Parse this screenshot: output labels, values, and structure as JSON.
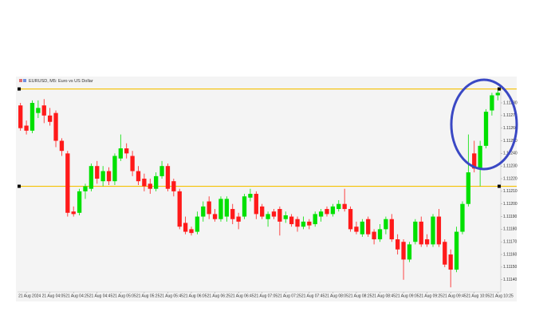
{
  "chart_data": {
    "type": "candlestick",
    "title": "EURUSD, M5:  Euro vs US Dollar",
    "categories": [
      null,
      "21 Aug 2024",
      null,
      null,
      null,
      "21 Aug 04:05",
      null,
      null,
      null,
      "21 Aug 04:25",
      null,
      null,
      null,
      "21 Aug 04:45",
      null,
      null,
      null,
      "21 Aug 05:05",
      null,
      null,
      null,
      "21 Aug 05:25",
      null,
      null,
      null,
      "21 Aug 05:45",
      null,
      null,
      null,
      "21 Aug 06:05",
      null,
      null,
      null,
      "21 Aug 06:25",
      null,
      null,
      null,
      "21 Aug 06:45",
      null,
      null,
      null,
      "21 Aug 07:05",
      null,
      null,
      null,
      "21 Aug 07:25",
      null,
      null,
      null,
      "21 Aug 07:45",
      null,
      null,
      null,
      "21 Aug 08:05",
      null,
      null,
      null,
      "21 Aug 08:25",
      null,
      null,
      null,
      "21 Aug 08:45",
      null,
      null,
      null,
      "21 Aug 09:05",
      null,
      null,
      null,
      "21 Aug 09:25",
      null,
      null,
      null,
      "21 Aug 09:45",
      null,
      null,
      null,
      "21 Aug 10:05",
      null,
      null,
      null,
      "21 Aug 10:25"
    ],
    "open": [
      1.11278,
      1.11262,
      1.11258,
      1.11272,
      1.11278,
      1.1127,
      1.11272,
      1.1125,
      1.1124,
      1.11194,
      1.11193,
      1.1121,
      1.11212,
      1.1123,
      1.11218,
      1.11226,
      1.11218,
      1.11236,
      1.11244,
      1.11238,
      1.11226,
      1.1122,
      1.11216,
      1.11212,
      1.11222,
      1.1123,
      1.11218,
      1.1121,
      1.11185,
      1.1118,
      1.11178,
      1.1119,
      1.11202,
      1.11192,
      1.11188,
      1.1119,
      1.11196,
      1.1119,
      1.1119,
      1.11205,
      1.11208,
      1.11198,
      1.11188,
      1.11194,
      1.11196,
      1.11188,
      1.1119,
      1.11188,
      1.11182,
      1.11186,
      1.11184,
      1.1119,
      1.11196,
      1.11192,
      1.11196,
      1.112,
      1.11196,
      1.11182,
      1.11176,
      1.11188,
      1.11178,
      1.11172,
      1.1118,
      1.11188,
      1.11172,
      1.1117,
      1.11156,
      1.1117,
      1.11186,
      1.11172,
      1.11168,
      1.1119,
      1.1117,
      1.1116,
      1.11148,
      1.11178,
      1.112,
      1.1124,
      1.11228,
      1.11246,
      1.11274,
      1.11286
    ],
    "high": [
      1.1128,
      1.11266,
      1.11282,
      1.11282,
      1.11283,
      1.11276,
      1.11274,
      1.11252,
      1.11242,
      1.11198,
      1.11212,
      1.11216,
      1.11232,
      1.11234,
      1.1123,
      1.11229,
      1.1124,
      1.11255,
      1.11248,
      1.11242,
      1.1123,
      1.11224,
      1.1122,
      1.11225,
      1.11234,
      1.11232,
      1.1122,
      1.11212,
      1.1119,
      1.11182,
      1.11194,
      1.11202,
      1.11206,
      1.11196,
      1.11206,
      1.11206,
      1.112,
      1.11193,
      1.11208,
      1.11212,
      1.1121,
      1.112,
      1.11194,
      1.11196,
      1.11198,
      1.11194,
      1.11192,
      1.1119,
      1.1119,
      1.11188,
      1.11194,
      1.11196,
      1.11198,
      1.112,
      1.11203,
      1.11212,
      1.11198,
      1.11186,
      1.11188,
      1.1119,
      1.1118,
      1.11184,
      1.1119,
      1.11192,
      1.11176,
      1.11172,
      1.1117,
      1.11188,
      1.1119,
      1.11176,
      1.11192,
      1.11196,
      1.11172,
      1.11164,
      1.11182,
      1.11202,
      1.11255,
      1.1125,
      1.1125,
      1.11275,
      1.11288,
      1.1129
    ],
    "low": [
      1.11258,
      1.11255,
      1.11256,
      1.11268,
      1.11264,
      1.11262,
      1.11245,
      1.11238,
      1.1119,
      1.1119,
      1.11191,
      1.11204,
      1.1121,
      1.11216,
      1.11214,
      1.11215,
      1.11215,
      1.11234,
      1.11236,
      1.11222,
      1.11215,
      1.1121,
      1.11208,
      1.1121,
      1.1122,
      1.1121,
      1.11206,
      1.1118,
      1.11176,
      1.11175,
      1.11176,
      1.11186,
      1.11188,
      1.11186,
      1.11186,
      1.11186,
      1.11184,
      1.1118,
      1.11188,
      1.11202,
      1.11188,
      1.11188,
      1.11182,
      1.11188,
      1.11175,
      1.11185,
      1.11182,
      1.11178,
      1.1118,
      1.1118,
      1.11182,
      1.11186,
      1.1119,
      1.1119,
      1.11194,
      1.11194,
      1.11178,
      1.11176,
      1.11174,
      1.11174,
      1.11168,
      1.1117,
      1.11176,
      1.1117,
      1.1116,
      1.1114,
      1.11154,
      1.11168,
      1.11166,
      1.11166,
      1.11166,
      1.11166,
      1.1115,
      1.11134,
      1.11146,
      1.11176,
      1.11198,
      1.11225,
      1.11214,
      1.11244,
      1.1127,
      1.11282
    ],
    "close": [
      1.1126,
      1.11258,
      1.1128,
      1.11276,
      1.1127,
      1.11265,
      1.1125,
      1.11242,
      1.11193,
      1.11192,
      1.1121,
      1.11214,
      1.1123,
      1.1122,
      1.11226,
      1.11218,
      1.11238,
      1.11244,
      1.1124,
      1.11226,
      1.11218,
      1.11214,
      1.11212,
      1.11222,
      1.1123,
      1.11212,
      1.1121,
      1.11182,
      1.11178,
      1.11177,
      1.1119,
      1.11198,
      1.11192,
      1.11188,
      1.11204,
      1.11204,
      1.11188,
      1.11186,
      1.11206,
      1.11208,
      1.11192,
      1.1119,
      1.11192,
      1.1119,
      1.11186,
      1.11191,
      1.11184,
      1.11182,
      1.11186,
      1.11183,
      1.11192,
      1.11194,
      1.11192,
      1.11198,
      1.112,
      1.11196,
      1.1118,
      1.11178,
      1.11186,
      1.11176,
      1.11172,
      1.1118,
      1.11188,
      1.11172,
      1.11164,
      1.11156,
      1.11168,
      1.11186,
      1.11168,
      1.11168,
      1.1119,
      1.11168,
      1.11152,
      1.11148,
      1.11178,
      1.112,
      1.11225,
      1.11228,
      1.11246,
      1.11273,
      1.11286,
      1.11288
    ],
    "up_color": "#00e000",
    "down_color": "#ff1a1a",
    "ylim": [
      1.11131,
      1.11292
    ],
    "yticks": [
      {
        "value": 1.1128,
        "label": "1.11280"
      },
      {
        "value": 1.1127,
        "label": "1.11270"
      },
      {
        "value": 1.1126,
        "label": "1.11260"
      },
      {
        "value": 1.1125,
        "label": "1.11250"
      },
      {
        "value": 1.1124,
        "label": "1.11240"
      },
      {
        "value": 1.1123,
        "label": "1.11230"
      },
      {
        "value": 1.1122,
        "label": "1.11220"
      },
      {
        "value": 1.1121,
        "label": "1.11210"
      },
      {
        "value": 1.112,
        "label": "1.11200"
      },
      {
        "value": 1.1119,
        "label": "1.11190"
      },
      {
        "value": 1.1118,
        "label": "1.11180"
      },
      {
        "value": 1.1117,
        "label": "1.11170"
      },
      {
        "value": 1.1116,
        "label": "1.11160"
      },
      {
        "value": 1.1115,
        "label": "1.11150"
      },
      {
        "value": 1.1114,
        "label": "1.11140"
      }
    ],
    "hlines": [
      {
        "value": 1.11291,
        "color": "#f5c000"
      },
      {
        "value": 1.11214,
        "color": "#f5c000"
      }
    ]
  }
}
